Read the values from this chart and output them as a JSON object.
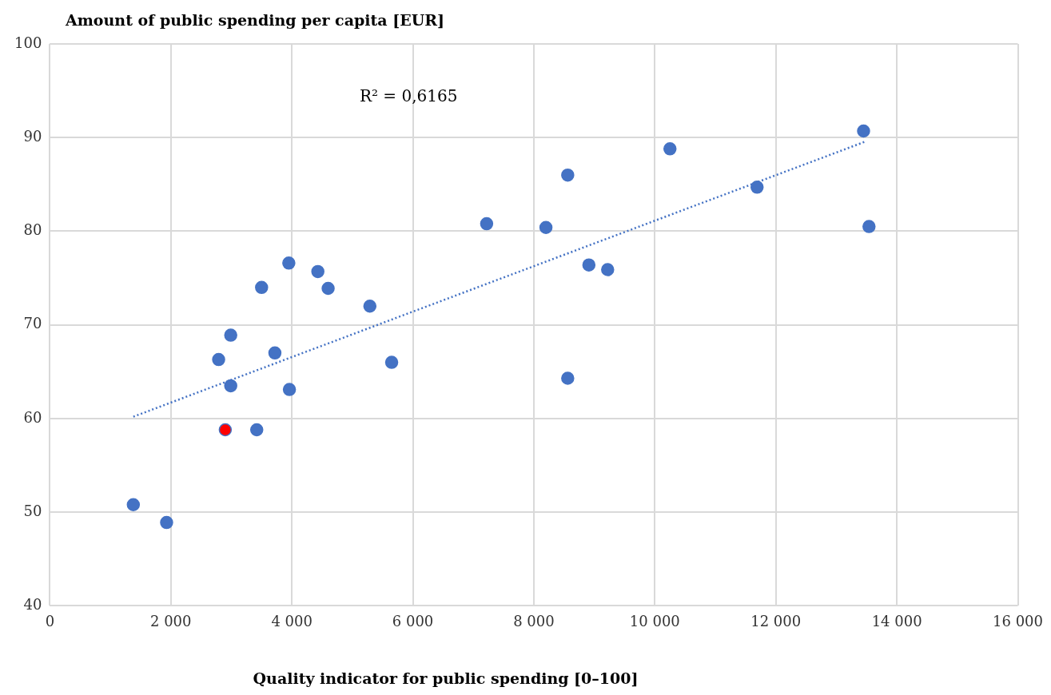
{
  "chart_data": {
    "type": "scatter",
    "xlabel": "Quality indicator for public spending [0–100]",
    "ylabel": "Amount of public spending per capita [EUR]",
    "xlim": [
      0,
      16000
    ],
    "ylim": [
      40,
      100
    ],
    "xticks": [
      0,
      {
        "value": 2000,
        "label": "2 000"
      },
      {
        "value": 4000,
        "label": "4 000"
      },
      {
        "value": 6000,
        "label": "6 000"
      },
      {
        "value": 8000,
        "label": "8 000"
      },
      {
        "value": 10000,
        "label": "10 000"
      },
      {
        "value": 12000,
        "label": "12 000"
      },
      {
        "value": 14000,
        "label": "14 000"
      },
      {
        "value": 16000,
        "label": "16 000"
      }
    ],
    "yticks": [
      40,
      50,
      60,
      70,
      80,
      90,
      100
    ],
    "grid": true,
    "legend": false,
    "marker": "circle",
    "annotations": [
      "R² = 0,6165"
    ],
    "series": [
      {
        "color": "#4472c4",
        "x": [
          1380,
          1930,
          2790,
          2990,
          2990,
          3420,
          3500,
          3720,
          3950,
          3960,
          4430,
          4600,
          5290,
          5650,
          7220,
          8200,
          8560,
          8560,
          8910,
          9220,
          10250,
          11690,
          13450,
          13540
        ],
        "values": [
          50.8,
          48.9,
          66.3,
          68.9,
          63.5,
          58.8,
          74.0,
          67.0,
          76.6,
          63.1,
          75.7,
          73.9,
          72.0,
          66.0,
          80.8,
          80.4,
          86.0,
          64.3,
          76.4,
          75.9,
          88.8,
          84.7,
          90.7,
          80.5
        ]
      },
      {
        "color": "#ff0000",
        "x": [
          2900
        ],
        "values": [
          58.8
        ]
      },
      {
        "type": "line",
        "color": "#4472c4",
        "line_style": "dotted",
        "marker": "none",
        "x": [
          1380,
          13490
        ],
        "values": [
          60.2,
          89.6
        ]
      }
    ]
  }
}
